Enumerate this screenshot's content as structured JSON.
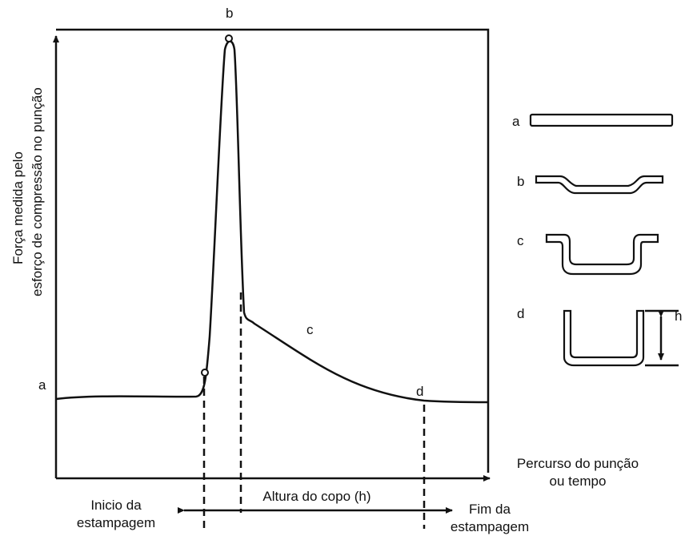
{
  "diagram": {
    "curve_labels": {
      "a": "a",
      "b": "b",
      "c": "c",
      "d": "d"
    },
    "y_axis_label": [
      "Força medida pelo",
      "esforço de compressão no punção"
    ],
    "x_axis_label": [
      "Percurso do punção",
      "ou tempo"
    ],
    "start_label": [
      "Inicio da",
      "estampagem"
    ],
    "height_label": "Altura do copo (h)",
    "end_label": [
      "Fim da",
      "estampagem"
    ],
    "stages": [
      {
        "label": "a"
      },
      {
        "label": "b"
      },
      {
        "label": "c"
      },
      {
        "label": "d",
        "dimension": "h"
      }
    ]
  }
}
